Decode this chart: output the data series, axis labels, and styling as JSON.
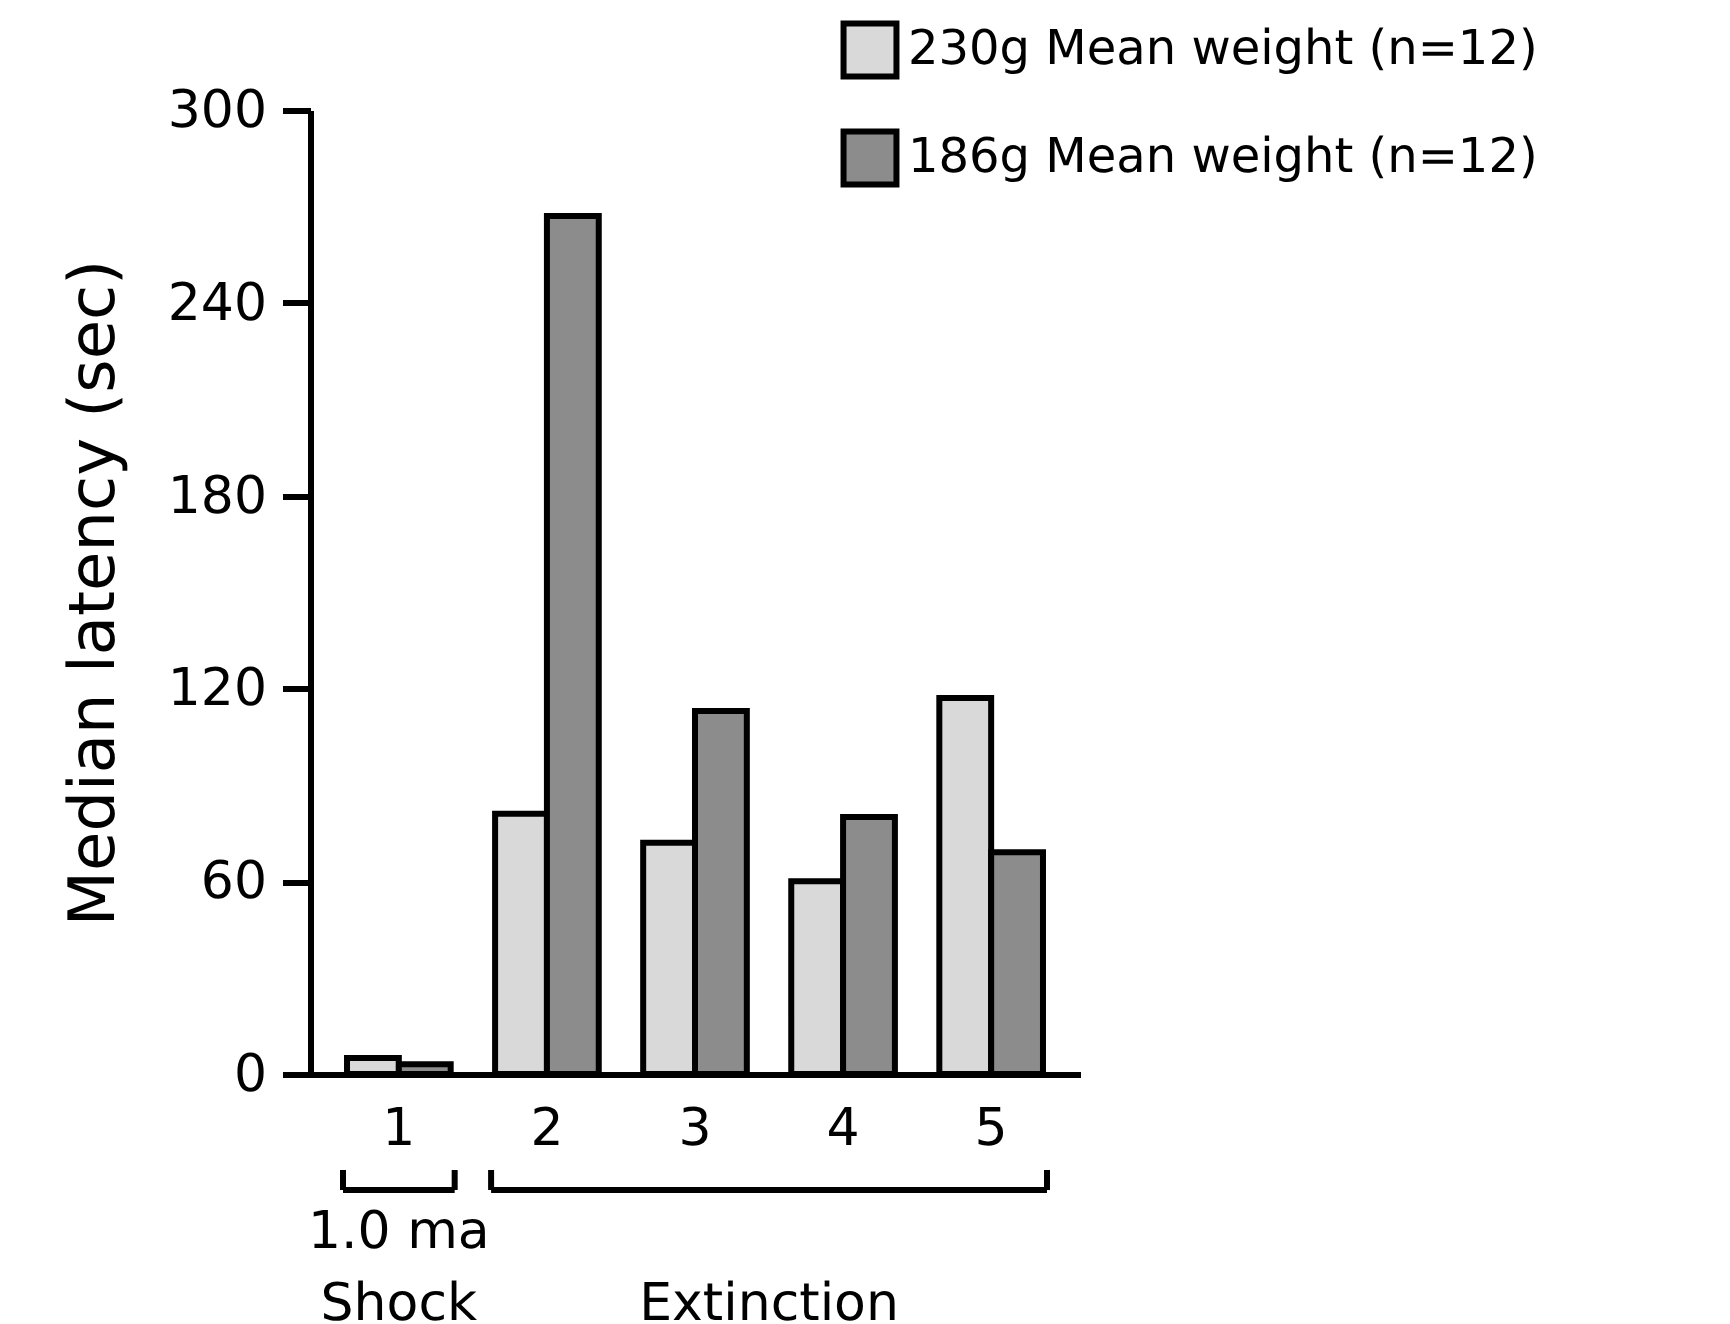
{
  "chart_data": {
    "type": "bar",
    "ylabel": "Median latency (sec)",
    "categories": [
      "1",
      "2",
      "3",
      "4",
      "5"
    ],
    "series": [
      {
        "name": "230g Mean weight (n=12)",
        "color": "#d9d9d9",
        "values": [
          5,
          81,
          72,
          60,
          117
        ]
      },
      {
        "name": "186g Mean weight (n=12)",
        "color": "#8c8c8c",
        "values": [
          3,
          267,
          113,
          80,
          69
        ]
      }
    ],
    "ylim": [
      0,
      300
    ],
    "yticks": [
      0,
      60,
      120,
      180,
      240,
      300
    ],
    "grid": false,
    "legend": "top right",
    "annotations": [
      "1.0 ma\nShock",
      "Extinction"
    ]
  }
}
